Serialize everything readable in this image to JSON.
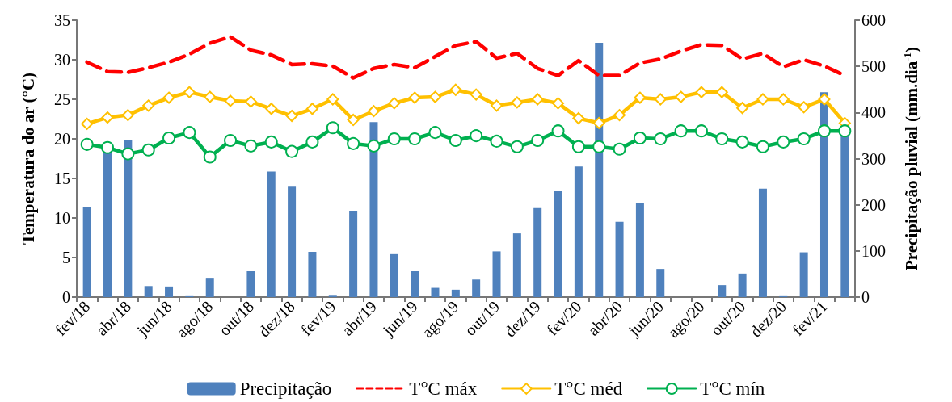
{
  "chart_data": {
    "type": "bar",
    "ylabel": "Temperatura do ar (°C)",
    "y2label": "Precipitação pluvial (mm.dia$^{-1}$)",
    "categories": [
      "fev/18",
      null,
      "abr/18",
      null,
      "jun/18",
      null,
      "ago/18",
      null,
      "out/18",
      null,
      "dez/18",
      null,
      "fev/19",
      null,
      "abr/19",
      null,
      "jun/19",
      null,
      "ago/19",
      null,
      "out/19",
      null,
      "dez/19",
      null,
      "fev/20",
      null,
      "abr/20",
      null,
      "jun/20",
      null,
      "ago/20",
      null,
      "out/20",
      null,
      "dez/20",
      null,
      "fev/21",
      null
    ],
    "series": [
      {
        "name": "Precipitação",
        "axis": "y2",
        "color": "#4f81bd",
        "values": [
          194,
          318,
          340,
          24,
          23,
          2,
          40,
          0,
          56,
          272,
          239,
          98,
          3,
          187,
          379,
          93,
          56,
          20,
          16,
          38,
          99,
          138,
          193,
          231,
          283,
          551,
          163,
          204,
          61,
          0,
          0,
          26,
          51,
          235,
          2,
          97,
          444,
          355
        ]
      },
      {
        "name": "T°C máx",
        "type": "line",
        "color": "#ff0000",
        "marker": "none",
        "line_style": "dashed",
        "values": [
          29.7,
          28.5,
          28.4,
          29.0,
          29.7,
          30.7,
          32.1,
          32.9,
          31.2,
          30.6,
          29.4,
          29.5,
          29.2,
          27.7,
          28.9,
          29.4,
          29.0,
          30.4,
          31.8,
          32.3,
          30.2,
          30.8,
          28.9,
          28.0,
          29.9,
          28.0,
          28.0,
          29.6,
          30.1,
          31.1,
          31.9,
          31.8,
          30.1,
          30.8,
          29.1,
          30.0,
          29.2,
          28.0
        ]
      },
      {
        "name": "T°C méd",
        "type": "line",
        "color": "#ffc000",
        "marker": "diamond",
        "line_style": "solid",
        "values": [
          21.9,
          22.7,
          23.0,
          24.2,
          25.2,
          25.9,
          25.3,
          24.8,
          24.7,
          23.8,
          22.9,
          23.8,
          25.0,
          22.4,
          23.5,
          24.5,
          25.2,
          25.3,
          26.2,
          25.6,
          24.2,
          24.6,
          25.0,
          24.5,
          22.6,
          22.0,
          23.0,
          25.2,
          25.0,
          25.3,
          25.9,
          25.9,
          23.9,
          25.0,
          25.0,
          24.0,
          25.0,
          22.0
        ]
      },
      {
        "name": "T°C mín",
        "type": "line",
        "color": "#00b050",
        "marker": "circle",
        "line_style": "solid",
        "values": [
          19.3,
          18.9,
          18.1,
          18.6,
          20.1,
          20.8,
          17.7,
          19.8,
          19.1,
          19.6,
          18.4,
          19.6,
          21.4,
          19.4,
          19.1,
          20.0,
          20.0,
          20.8,
          19.8,
          20.4,
          19.7,
          19.0,
          19.8,
          21.0,
          19.0,
          19.0,
          18.7,
          20.1,
          20.0,
          21.0,
          21.0,
          20.0,
          19.6,
          19.0,
          19.6,
          20.0,
          21.0,
          21.0
        ]
      }
    ],
    "ylim": [
      0,
      35
    ],
    "yticks": [
      0,
      5,
      10,
      15,
      20,
      25,
      30,
      35
    ],
    "y2lim": [
      0,
      600
    ],
    "y2ticks": [
      0,
      100,
      200,
      300,
      400,
      500,
      600
    ],
    "grid": false,
    "legend": "bottom"
  }
}
